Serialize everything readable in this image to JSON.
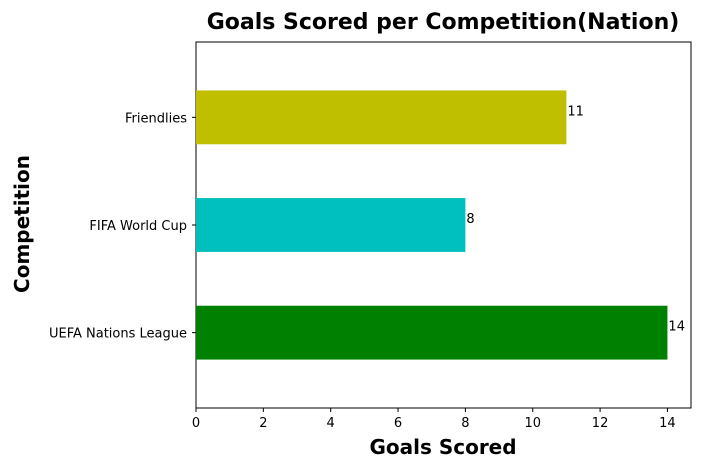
{
  "chart_data": {
    "type": "bar",
    "orientation": "horizontal",
    "title": "Goals Scored per Competition(Nation)",
    "xlabel": "Goals Scored",
    "ylabel": "Competition",
    "categories": [
      "UEFA Nations League",
      "FIFA World Cup",
      "Friendlies"
    ],
    "values": [
      14,
      8,
      11
    ],
    "colors": [
      "#008000",
      "#00bfbf",
      "#bfbf00"
    ],
    "data_labels": [
      "14",
      "8",
      "11"
    ],
    "xlim": [
      0,
      14.7
    ],
    "xticks": [
      0,
      2,
      4,
      6,
      8,
      10,
      12,
      14
    ],
    "xtick_labels": [
      "0",
      "2",
      "4",
      "6",
      "8",
      "10",
      "12",
      "14"
    ],
    "grid": false,
    "legend": "none"
  }
}
